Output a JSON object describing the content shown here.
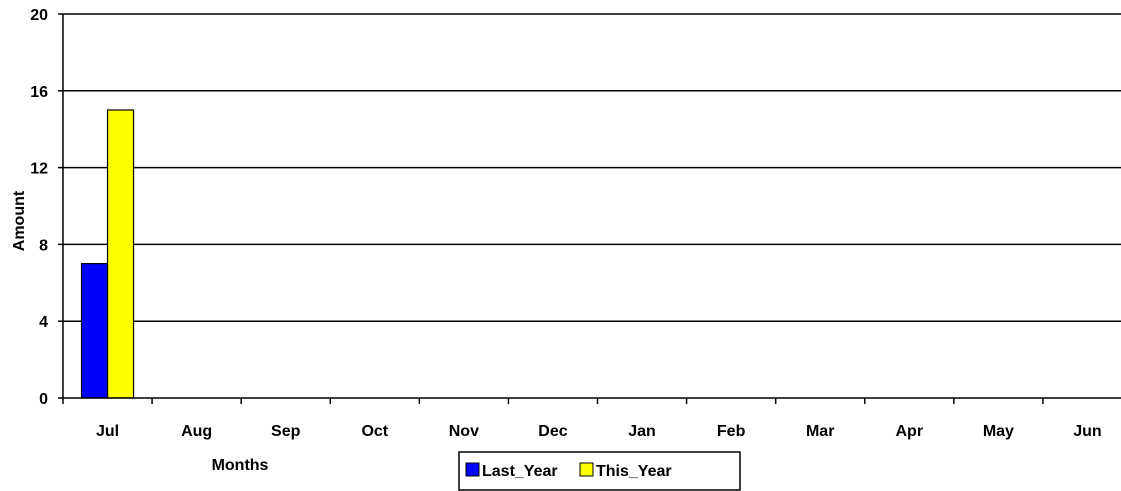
{
  "chart_data": {
    "type": "bar",
    "categories": [
      "Jul",
      "Aug",
      "Sep",
      "Oct",
      "Nov",
      "Dec",
      "Jan",
      "Feb",
      "Mar",
      "Apr",
      "May",
      "Jun"
    ],
    "series": [
      {
        "name": "Last_Year",
        "color": "#0000ff",
        "values": [
          7,
          null,
          null,
          null,
          null,
          null,
          null,
          null,
          null,
          null,
          null,
          null
        ]
      },
      {
        "name": "This_Year",
        "color": "#ffff00",
        "values": [
          15,
          null,
          null,
          null,
          null,
          null,
          null,
          null,
          null,
          null,
          null,
          null
        ]
      }
    ],
    "title": "",
    "xlabel": "Months",
    "ylabel": "Amount",
    "ylim": [
      0,
      20
    ],
    "yticks": [
      0,
      4,
      8,
      12,
      16,
      20
    ],
    "grid": true,
    "legend_position": "bottom"
  }
}
